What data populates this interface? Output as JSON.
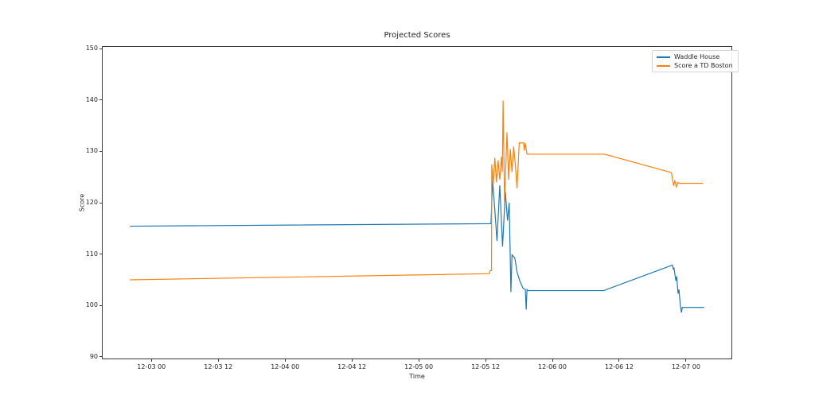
{
  "figure": {
    "background": "#ffffff",
    "title": "Projected Scores"
  },
  "chart_data": {
    "type": "line",
    "title": "Projected Scores",
    "xlabel": "Time",
    "ylabel": "Score",
    "x_unit": "hours since 12-03 00:00",
    "xlim": [
      -8.9,
      104.3
    ],
    "ylim": [
      89.5,
      150.5
    ],
    "grid": false,
    "legend_position": "upper right",
    "x_ticks": [
      {
        "hour": 0,
        "label": "12-03 00"
      },
      {
        "hour": 12,
        "label": "12-03 12"
      },
      {
        "hour": 24,
        "label": "12-04 00"
      },
      {
        "hour": 36,
        "label": "12-04 12"
      },
      {
        "hour": 48,
        "label": "12-05 00"
      },
      {
        "hour": 60,
        "label": "12-05 12"
      },
      {
        "hour": 72,
        "label": "12-06 00"
      },
      {
        "hour": 84,
        "label": "12-06 12"
      },
      {
        "hour": 96,
        "label": "12-07 00"
      }
    ],
    "y_ticks": [
      90,
      100,
      110,
      120,
      130,
      140,
      150
    ],
    "series": [
      {
        "name": "Waddle House",
        "color": "#1f77b4",
        "points": [
          [
            -4.0,
            115.4
          ],
          [
            61.0,
            115.9
          ],
          [
            61.3,
            124.3
          ],
          [
            61.7,
            118.5
          ],
          [
            62.1,
            112.5
          ],
          [
            62.6,
            123.4
          ],
          [
            63.1,
            111.4
          ],
          [
            63.6,
            122.1
          ],
          [
            64.0,
            116.5
          ],
          [
            64.3,
            120.0
          ],
          [
            64.6,
            102.5
          ],
          [
            64.8,
            109.8
          ],
          [
            65.3,
            109.2
          ],
          [
            65.7,
            106.5
          ],
          [
            66.2,
            104.7
          ],
          [
            66.8,
            103.2
          ],
          [
            67.2,
            103.0
          ],
          [
            67.35,
            99.1
          ],
          [
            67.5,
            103.0
          ],
          [
            67.7,
            102.8
          ],
          [
            81.3,
            102.8
          ],
          [
            93.7,
            107.8
          ],
          [
            93.85,
            106.9
          ],
          [
            93.95,
            107.3
          ],
          [
            94.3,
            104.7
          ],
          [
            94.45,
            105.6
          ],
          [
            94.7,
            102.2
          ],
          [
            94.85,
            103.0
          ],
          [
            95.1,
            100.0
          ],
          [
            95.3,
            98.5
          ],
          [
            95.45,
            99.5
          ],
          [
            99.4,
            99.5
          ]
        ]
      },
      {
        "name": "Score a TD Boston",
        "color": "#ff7f0e",
        "points": [
          [
            -4.0,
            104.9
          ],
          [
            60.7,
            106.1
          ],
          [
            60.85,
            106.7
          ],
          [
            61.1,
            106.7
          ],
          [
            61.15,
            127.5
          ],
          [
            61.4,
            123.5
          ],
          [
            61.7,
            128.8
          ],
          [
            62.0,
            124.0
          ],
          [
            62.3,
            128.3
          ],
          [
            62.6,
            124.5
          ],
          [
            62.9,
            129.0
          ],
          [
            63.05,
            126.0
          ],
          [
            63.2,
            140.0
          ],
          [
            63.45,
            119.8
          ],
          [
            63.9,
            133.8
          ],
          [
            64.2,
            124.5
          ],
          [
            64.5,
            130.5
          ],
          [
            64.8,
            126.0
          ],
          [
            65.1,
            131.0
          ],
          [
            65.4,
            127.5
          ],
          [
            65.7,
            122.8
          ],
          [
            66.1,
            131.7
          ],
          [
            66.9,
            131.7
          ],
          [
            67.0,
            130.2
          ],
          [
            67.15,
            131.7
          ],
          [
            67.5,
            129.5
          ],
          [
            81.4,
            129.5
          ],
          [
            93.5,
            125.9
          ],
          [
            93.9,
            123.3
          ],
          [
            94.1,
            124.4
          ],
          [
            94.4,
            123.1
          ],
          [
            94.65,
            124.0
          ],
          [
            94.9,
            123.8
          ],
          [
            99.2,
            123.8
          ]
        ]
      }
    ]
  },
  "legend": {
    "entries": [
      {
        "label": "Waddle House",
        "color": "#1f77b4"
      },
      {
        "label": "Score a TD Boston",
        "color": "#ff7f0e"
      }
    ]
  }
}
